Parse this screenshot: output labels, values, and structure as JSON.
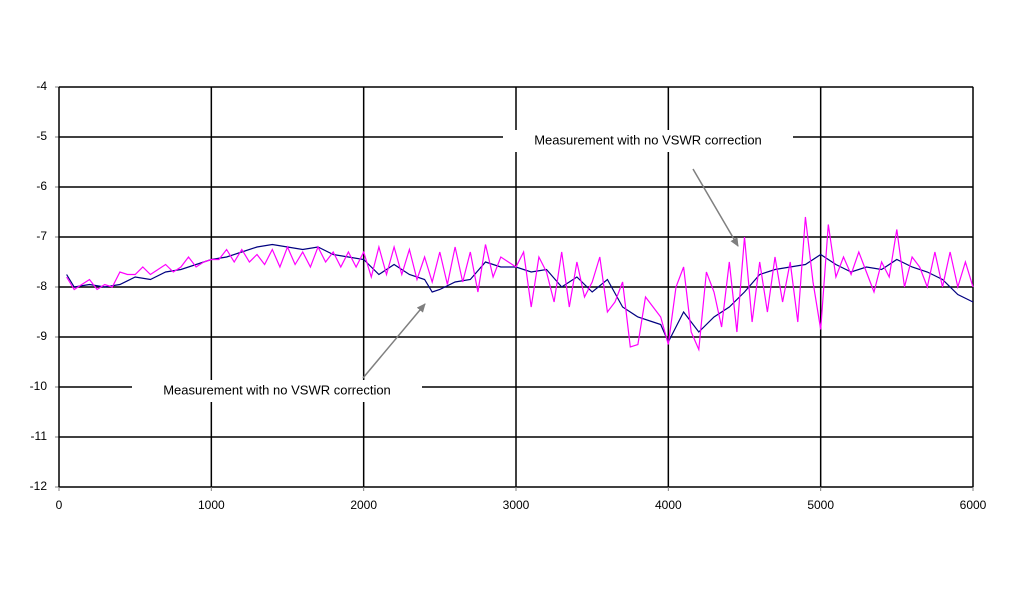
{
  "chart_data": {
    "type": "line",
    "xlim": [
      0,
      6000
    ],
    "xticks": [
      0,
      1000,
      2000,
      3000,
      4000,
      5000,
      6000
    ],
    "ylim": [
      -12,
      -4
    ],
    "yticks": [
      -4,
      -5,
      -6,
      -7,
      -8,
      -9,
      -10,
      -11,
      -12
    ],
    "grid": true,
    "annotations": [
      {
        "text": "Measurement with no VSWR correction"
      },
      {
        "text": "Measurement with no VSWR correction"
      }
    ],
    "series": [
      {
        "color": "#000080",
        "x": [
          50,
          100,
          200,
          300,
          400,
          500,
          600,
          700,
          800,
          900,
          1000,
          1100,
          1200,
          1300,
          1400,
          1500,
          1600,
          1700,
          1800,
          1900,
          2000,
          2100,
          2200,
          2300,
          2400,
          2450,
          2500,
          2600,
          2700,
          2800,
          2900,
          3000,
          3100,
          3200,
          3300,
          3400,
          3500,
          3600,
          3700,
          3800,
          3900,
          3950,
          4000,
          4100,
          4200,
          4300,
          4400,
          4500,
          4600,
          4700,
          4800,
          4900,
          5000,
          5100,
          5200,
          5300,
          5400,
          5500,
          5600,
          5700,
          5800,
          5900,
          6000
        ],
        "values": [
          -7.75,
          -8.0,
          -7.95,
          -8.0,
          -7.95,
          -7.8,
          -7.85,
          -7.7,
          -7.65,
          -7.55,
          -7.45,
          -7.4,
          -7.3,
          -7.2,
          -7.15,
          -7.2,
          -7.25,
          -7.2,
          -7.35,
          -7.4,
          -7.45,
          -7.75,
          -7.55,
          -7.75,
          -7.85,
          -8.1,
          -8.05,
          -7.9,
          -7.85,
          -7.5,
          -7.6,
          -7.6,
          -7.7,
          -7.65,
          -8.0,
          -7.8,
          -8.1,
          -7.85,
          -8.4,
          -8.6,
          -8.7,
          -8.75,
          -9.1,
          -8.5,
          -8.9,
          -8.6,
          -8.4,
          -8.1,
          -7.75,
          -7.65,
          -7.6,
          -7.55,
          -7.35,
          -7.55,
          -7.7,
          -7.6,
          -7.65,
          -7.45,
          -7.6,
          -7.7,
          -7.85,
          -8.15,
          -8.3
        ]
      },
      {
        "color": "#ff00ff",
        "x": [
          50,
          100,
          150,
          200,
          250,
          300,
          350,
          400,
          450,
          500,
          550,
          600,
          650,
          700,
          750,
          800,
          850,
          900,
          950,
          1000,
          1050,
          1100,
          1150,
          1200,
          1250,
          1300,
          1350,
          1400,
          1450,
          1500,
          1550,
          1600,
          1650,
          1700,
          1750,
          1800,
          1850,
          1900,
          1950,
          2000,
          2050,
          2100,
          2150,
          2200,
          2250,
          2300,
          2350,
          2400,
          2450,
          2500,
          2550,
          2600,
          2650,
          2700,
          2750,
          2800,
          2850,
          2900,
          2950,
          3000,
          3050,
          3100,
          3150,
          3200,
          3250,
          3300,
          3350,
          3400,
          3450,
          3500,
          3550,
          3600,
          3650,
          3700,
          3750,
          3800,
          3850,
          3900,
          3950,
          4000,
          4050,
          4100,
          4150,
          4200,
          4250,
          4300,
          4350,
          4400,
          4450,
          4500,
          4550,
          4600,
          4650,
          4700,
          4750,
          4800,
          4850,
          4900,
          4950,
          5000,
          5050,
          5100,
          5150,
          5200,
          5250,
          5300,
          5350,
          5400,
          5450,
          5500,
          5550,
          5600,
          5650,
          5700,
          5750,
          5800,
          5850,
          5900,
          5950,
          6000
        ],
        "values": [
          -7.8,
          -8.05,
          -7.95,
          -7.85,
          -8.05,
          -7.95,
          -8.0,
          -7.7,
          -7.75,
          -7.75,
          -7.6,
          -7.75,
          -7.65,
          -7.55,
          -7.7,
          -7.6,
          -7.4,
          -7.6,
          -7.5,
          -7.45,
          -7.45,
          -7.25,
          -7.5,
          -7.25,
          -7.5,
          -7.35,
          -7.55,
          -7.25,
          -7.6,
          -7.2,
          -7.55,
          -7.3,
          -7.6,
          -7.2,
          -7.5,
          -7.3,
          -7.6,
          -7.3,
          -7.6,
          -7.3,
          -7.8,
          -7.2,
          -7.75,
          -7.2,
          -7.75,
          -7.25,
          -7.85,
          -7.4,
          -7.9,
          -7.3,
          -7.95,
          -7.2,
          -7.9,
          -7.3,
          -8.1,
          -7.15,
          -7.8,
          -7.4,
          -7.5,
          -7.6,
          -7.3,
          -8.4,
          -7.4,
          -7.7,
          -8.3,
          -7.3,
          -8.4,
          -7.5,
          -8.2,
          -7.9,
          -7.4,
          -8.5,
          -8.3,
          -7.9,
          -9.2,
          -9.15,
          -8.2,
          -8.4,
          -8.6,
          -9.15,
          -8.0,
          -7.6,
          -8.9,
          -9.25,
          -7.7,
          -8.1,
          -8.8,
          -7.5,
          -8.9,
          -7.0,
          -8.7,
          -7.5,
          -8.5,
          -7.4,
          -8.3,
          -7.5,
          -8.7,
          -6.6,
          -7.9,
          -8.85,
          -6.75,
          -7.8,
          -7.4,
          -7.75,
          -7.3,
          -7.7,
          -8.1,
          -7.5,
          -7.8,
          -6.85,
          -8.0,
          -7.4,
          -7.6,
          -8.0,
          -7.3,
          -8.0,
          -7.3,
          -8.0,
          -7.5,
          -8.0
        ]
      }
    ]
  }
}
